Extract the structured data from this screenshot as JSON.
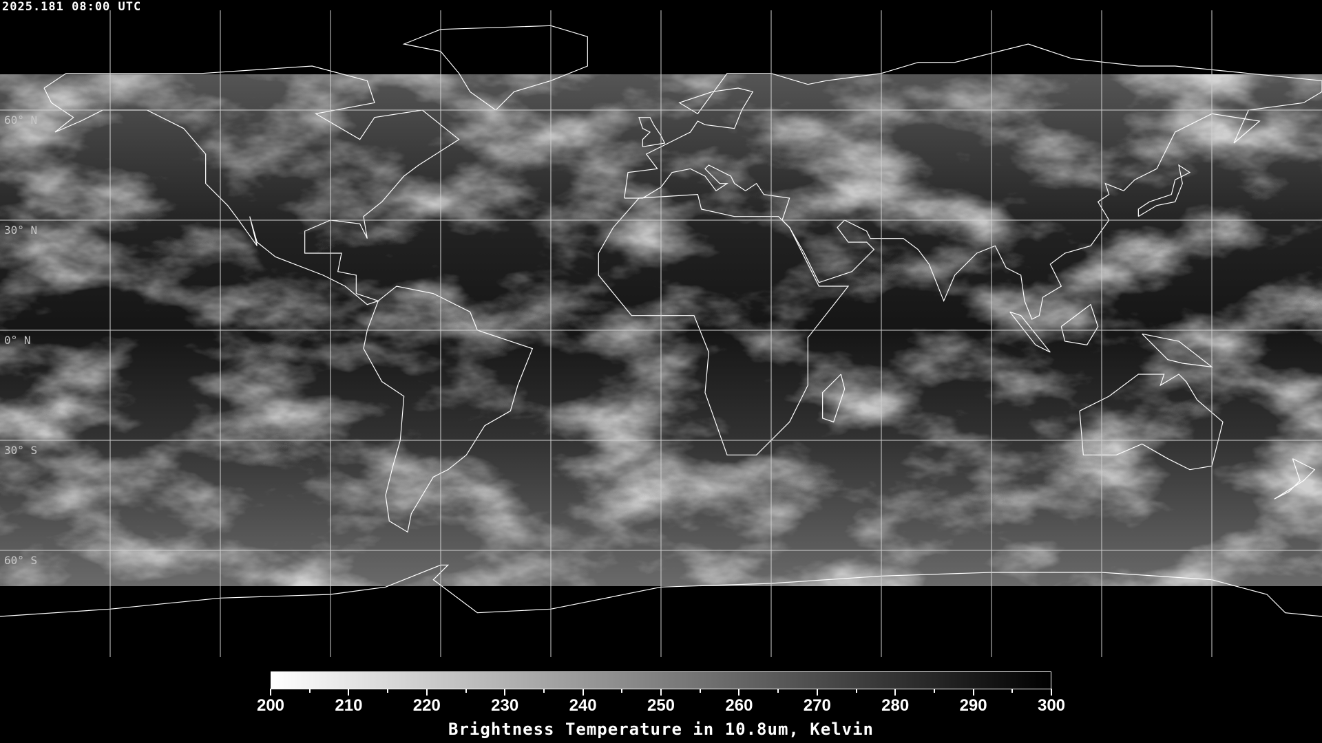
{
  "header": {
    "timestamp": "2025.181 08:00 UTC"
  },
  "map": {
    "projection": "equirectangular",
    "lon_range": [
      -180,
      180
    ],
    "lat_range": [
      -90,
      90
    ],
    "grid_spacing_deg": 30,
    "lat_labels": [
      "60° N",
      "30° N",
      "0° N",
      "30° S",
      "60° S"
    ],
    "grid_color": "#ffffff",
    "coastline_color": "#ffffff",
    "background": "#000000"
  },
  "colorbar": {
    "ticks": [
      "200",
      "210",
      "220",
      "230",
      "240",
      "250",
      "260",
      "270",
      "280",
      "290",
      "300"
    ],
    "range": [
      200,
      300
    ],
    "color_low": "#ffffff",
    "color_high": "#000000",
    "title": "Brightness Temperature in 10.8um, Kelvin"
  }
}
